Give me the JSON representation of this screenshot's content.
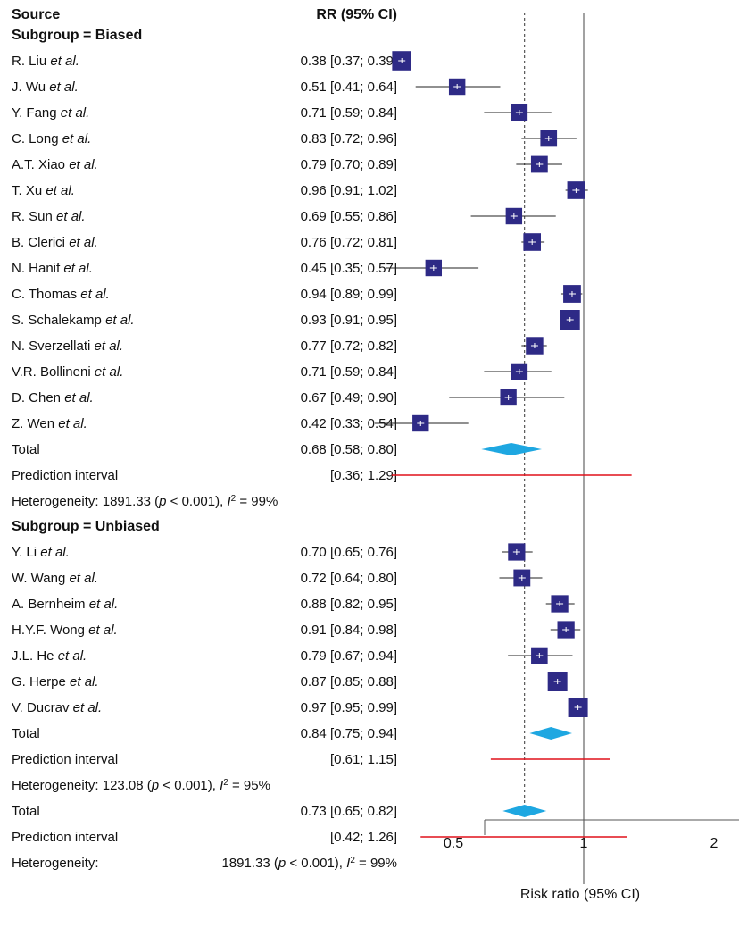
{
  "chart_data": {
    "type": "forest",
    "header": {
      "source": "Source",
      "estimate": "RR (95% CI)"
    },
    "xlabel": "Risk ratio (95% CI)",
    "x_ticks": [
      "0.5",
      "1",
      "2"
    ],
    "x_scale": "log",
    "reference_line": 1,
    "overall_line": 0.73,
    "subgroups": [
      {
        "title": "Subgroup = Biased",
        "studies": [
          {
            "name": "R. Liu",
            "suffix": "et al.",
            "rr": 0.38,
            "lo": 0.37,
            "hi": 0.39,
            "text": "0.38 [0.37; 0.39]"
          },
          {
            "name": "J. Wu",
            "suffix": "et al.",
            "rr": 0.51,
            "lo": 0.41,
            "hi": 0.64,
            "text": "0.51 [0.41; 0.64]"
          },
          {
            "name": "Y. Fang",
            "suffix": "et al.",
            "rr": 0.71,
            "lo": 0.59,
            "hi": 0.84,
            "text": "0.71 [0.59; 0.84]"
          },
          {
            "name": "C. Long",
            "suffix": "et al.",
            "rr": 0.83,
            "lo": 0.72,
            "hi": 0.96,
            "text": "0.83 [0.72; 0.96]"
          },
          {
            "name": "A.T. Xiao",
            "suffix": "et al.",
            "rr": 0.79,
            "lo": 0.7,
            "hi": 0.89,
            "text": "0.79 [0.70; 0.89]"
          },
          {
            "name": "T. Xu",
            "suffix": "et al.",
            "rr": 0.96,
            "lo": 0.91,
            "hi": 1.02,
            "text": "0.96 [0.91; 1.02]"
          },
          {
            "name": "R. Sun",
            "suffix": "et al.",
            "rr": 0.69,
            "lo": 0.55,
            "hi": 0.86,
            "text": "0.69 [0.55; 0.86]"
          },
          {
            "name": "B. Clerici",
            "suffix": "et al.",
            "rr": 0.76,
            "lo": 0.72,
            "hi": 0.81,
            "text": "0.76 [0.72; 0.81]"
          },
          {
            "name": "N. Hanif",
            "suffix": "et al.",
            "rr": 0.45,
            "lo": 0.35,
            "hi": 0.57,
            "text": "0.45 [0.35; 0.57]"
          },
          {
            "name": "C. Thomas",
            "suffix": "et al.",
            "rr": 0.94,
            "lo": 0.89,
            "hi": 0.99,
            "text": "0.94 [0.89; 0.99]"
          },
          {
            "name": "S. Schalekamp",
            "suffix": "et al.",
            "rr": 0.93,
            "lo": 0.91,
            "hi": 0.95,
            "text": "0.93 [0.91; 0.95]"
          },
          {
            "name": "N. Sverzellati",
            "suffix": "et al.",
            "rr": 0.77,
            "lo": 0.72,
            "hi": 0.82,
            "text": "0.77 [0.72; 0.82]"
          },
          {
            "name": "V.R. Bollineni",
            "suffix": "et al.",
            "rr": 0.71,
            "lo": 0.59,
            "hi": 0.84,
            "text": "0.71 [0.59; 0.84]"
          },
          {
            "name": "D. Chen",
            "suffix": "et al.",
            "rr": 0.67,
            "lo": 0.49,
            "hi": 0.9,
            "text": "0.67 [0.49; 0.90]"
          },
          {
            "name": "Z. Wen",
            "suffix": "et al.",
            "rr": 0.42,
            "lo": 0.33,
            "hi": 0.54,
            "text": "0.42 [0.33; 0.54]"
          }
        ],
        "total": {
          "label": "Total",
          "rr": 0.68,
          "lo": 0.58,
          "hi": 0.8,
          "text": "0.68 [0.58; 0.80]"
        },
        "prediction": {
          "label": "Prediction interval",
          "lo": 0.36,
          "hi": 1.29,
          "text": "[0.36; 1.29]"
        },
        "heterogeneity": {
          "prefix": "Heterogeneity: 1891.33 (",
          "p": "p",
          "mid": " < 0.001), ",
          "i2": "I",
          "sup": "2",
          "tail": " = 99%"
        }
      },
      {
        "title": "Subgroup = Unbiased",
        "studies": [
          {
            "name": "Y. Li",
            "suffix": "et al.",
            "rr": 0.7,
            "lo": 0.65,
            "hi": 0.76,
            "text": "0.70 [0.65; 0.76]"
          },
          {
            "name": "W. Wang",
            "suffix": "et al.",
            "rr": 0.72,
            "lo": 0.64,
            "hi": 0.8,
            "text": "0.72 [0.64; 0.80]"
          },
          {
            "name": "A. Bernheim",
            "suffix": "et al.",
            "rr": 0.88,
            "lo": 0.82,
            "hi": 0.95,
            "text": "0.88 [0.82; 0.95]"
          },
          {
            "name": "H.Y.F. Wong",
            "suffix": "et al.",
            "rr": 0.91,
            "lo": 0.84,
            "hi": 0.98,
            "text": "0.91 [0.84; 0.98]"
          },
          {
            "name": "J.L. He",
            "suffix": "et al.",
            "rr": 0.79,
            "lo": 0.67,
            "hi": 0.94,
            "text": "0.79 [0.67; 0.94]"
          },
          {
            "name": "G. Herpe",
            "suffix": "et al.",
            "rr": 0.87,
            "lo": 0.85,
            "hi": 0.88,
            "text": "0.87 [0.85; 0.88]"
          },
          {
            "name": "V. Ducrav",
            "suffix": "et al.",
            "rr": 0.97,
            "lo": 0.95,
            "hi": 0.99,
            "text": "0.97 [0.95; 0.99]"
          }
        ],
        "total": {
          "label": "Total",
          "rr": 0.84,
          "lo": 0.75,
          "hi": 0.94,
          "text": "0.84 [0.75; 0.94]"
        },
        "prediction": {
          "label": "Prediction interval",
          "lo": 0.61,
          "hi": 1.15,
          "text": "[0.61; 1.15]"
        },
        "heterogeneity": {
          "prefix": "Heterogeneity: 123.08 (",
          "p": "p",
          "mid": " < 0.001), ",
          "i2": "I",
          "sup": "2",
          "tail": " = 95%"
        }
      }
    ],
    "overall": {
      "total": {
        "label": "Total",
        "rr": 0.73,
        "lo": 0.65,
        "hi": 0.82,
        "text": "0.73 [0.65; 0.82]"
      },
      "prediction": {
        "label": "Prediction interval",
        "lo": 0.42,
        "hi": 1.26,
        "text": "[0.42; 1.26]"
      },
      "heterogeneity": {
        "label": "Heterogeneity:",
        "prefix": "1891.33 (",
        "p": "p",
        "mid": " < 0.001), ",
        "i2": "I",
        "sup": "2",
        "tail": " = 99%"
      }
    },
    "colors": {
      "square": "#2e2a86",
      "diamond": "#1ea7e1",
      "prediction": "#e0101a",
      "line": "#222222"
    }
  }
}
